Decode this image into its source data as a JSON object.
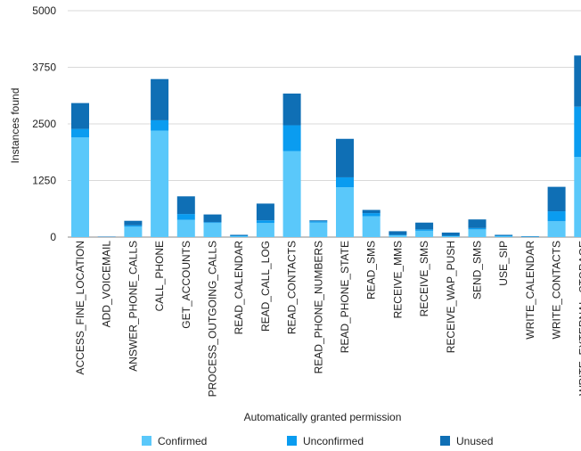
{
  "chart_data": {
    "type": "bar",
    "stacked": true,
    "xlabel": "Automatically granted permission",
    "ylabel": "Instances found",
    "ylim": [
      0,
      5000
    ],
    "yticks": [
      0,
      1250,
      2500,
      3750,
      5000
    ],
    "grid": true,
    "legend_position": "bottom",
    "categories": [
      "ACCESS_FINE_LOCATION",
      "ADD_VOICEMAIL",
      "ANSWER_PHONE_CALLS",
      "CALL_PHONE",
      "GET_ACCOUNTS",
      "PROCESS_OUTGOING_CALLS",
      "READ_CALENDAR",
      "READ_CALL_LOG",
      "READ_CONTACTS",
      "READ_PHONE_NUMBERS",
      "READ_PHONE_STATE",
      "READ_SMS",
      "RECEIVE_MMS",
      "RECEIVE_SMS",
      "RECEIVE_WAP_PUSH",
      "SEND_SMS",
      "USE_SIP",
      "WRITE_CALENDAR",
      "WRITE_CONTACTS",
      "WRITE_EXTERNAL_STORAGE"
    ],
    "series": [
      {
        "name": "Confirmed",
        "color": "#5AC8FA",
        "values": [
          2200,
          0,
          230,
          2350,
          380,
          310,
          20,
          310,
          1900,
          320,
          1100,
          460,
          40,
          140,
          20,
          170,
          20,
          10,
          350,
          1770
        ]
      },
      {
        "name": "Unconfirmed",
        "color": "#0A9CF0",
        "values": [
          190,
          0,
          30,
          230,
          130,
          20,
          10,
          60,
          570,
          30,
          220,
          70,
          10,
          30,
          10,
          30,
          10,
          0,
          220,
          1110
        ]
      },
      {
        "name": "Unused",
        "color": "#0F6FB5",
        "values": [
          570,
          10,
          100,
          910,
          390,
          170,
          20,
          370,
          700,
          20,
          850,
          70,
          80,
          150,
          70,
          190,
          20,
          10,
          540,
          1130
        ]
      }
    ]
  }
}
